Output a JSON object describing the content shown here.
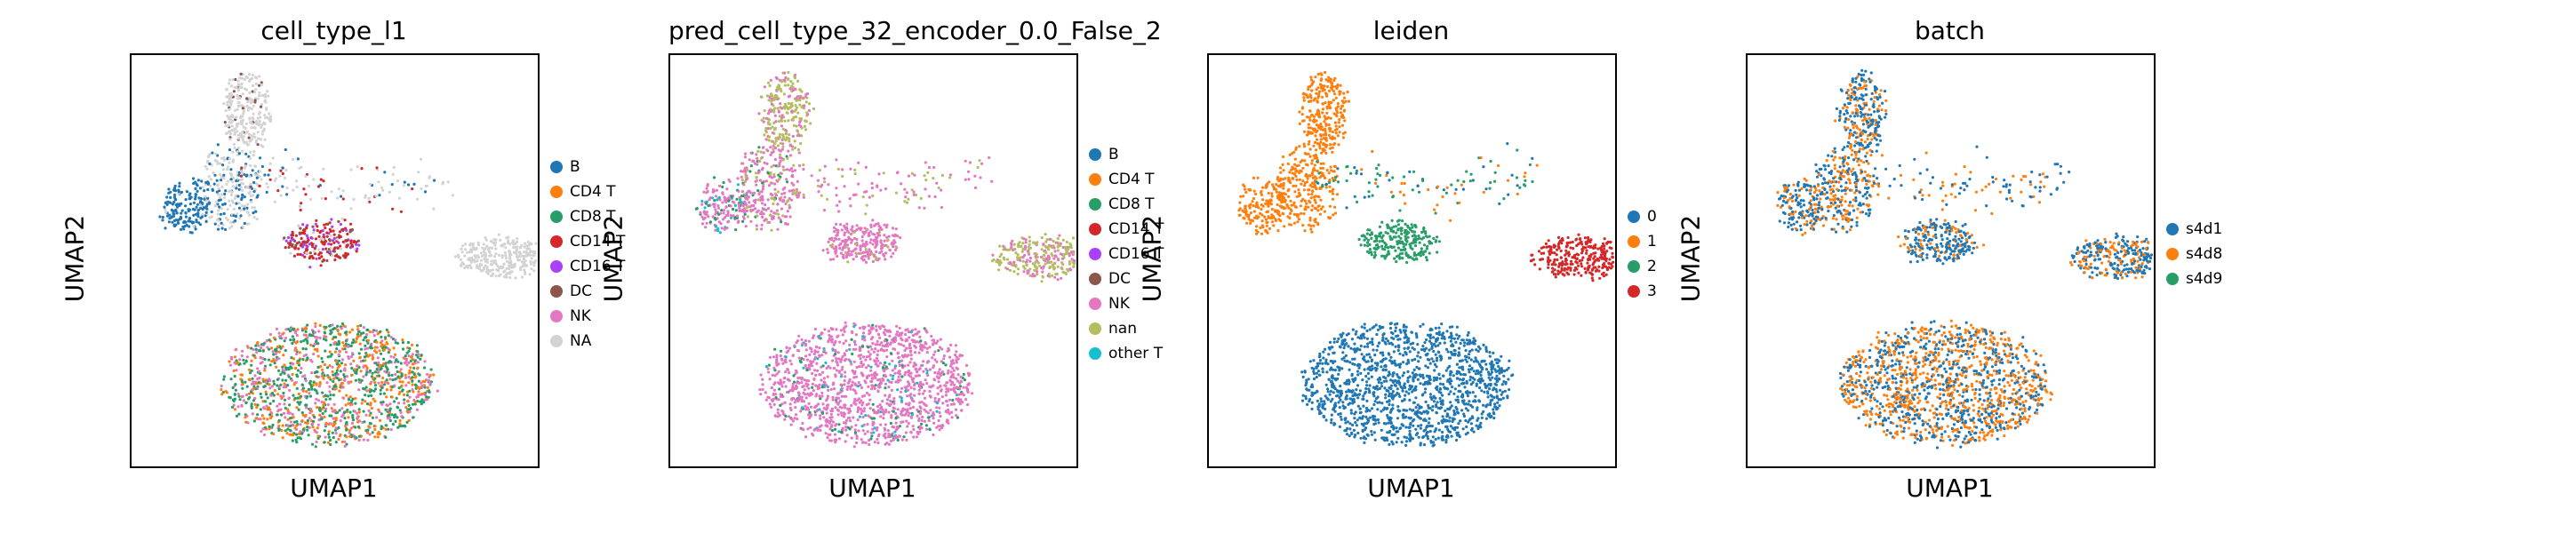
{
  "chart_data": [
    {
      "type": "scatter",
      "title": "cell_type_l1",
      "xlabel": "UMAP1",
      "ylabel": "UMAP2",
      "legend_position": "right",
      "grid": false,
      "series": [
        {
          "name": "B",
          "color": "#1f77b4"
        },
        {
          "name": "CD4 T",
          "color": "#ff7f0e"
        },
        {
          "name": "CD8 T",
          "color": "#279e68"
        },
        {
          "name": "CD14 T",
          "color": "#d62728"
        },
        {
          "name": "CD16 T",
          "color": "#aa40fc"
        },
        {
          "name": "DC",
          "color": "#8c564b"
        },
        {
          "name": "NK",
          "color": "#e377c2"
        },
        {
          "name": "NA",
          "color": "#d3d3d3"
        }
      ]
    },
    {
      "type": "scatter",
      "title": "pred_cell_type_32_encoder_0.0_False_2",
      "xlabel": "UMAP1",
      "ylabel": "UMAP2",
      "legend_position": "right",
      "grid": false,
      "series": [
        {
          "name": "B",
          "color": "#1f77b4"
        },
        {
          "name": "CD4 T",
          "color": "#ff7f0e"
        },
        {
          "name": "CD8 T",
          "color": "#279e68"
        },
        {
          "name": "CD14 T",
          "color": "#d62728"
        },
        {
          "name": "CD16 T",
          "color": "#aa40fc"
        },
        {
          "name": "DC",
          "color": "#8c564b"
        },
        {
          "name": "NK",
          "color": "#e377c2"
        },
        {
          "name": "nan",
          "color": "#b5bd61"
        },
        {
          "name": "other T",
          "color": "#17becf"
        }
      ]
    },
    {
      "type": "scatter",
      "title": "leiden",
      "xlabel": "UMAP1",
      "ylabel": "UMAP2",
      "legend_position": "right",
      "grid": false,
      "series": [
        {
          "name": "0",
          "color": "#1f77b4"
        },
        {
          "name": "1",
          "color": "#ff7f0e"
        },
        {
          "name": "2",
          "color": "#279e68"
        },
        {
          "name": "3",
          "color": "#d62728"
        }
      ]
    },
    {
      "type": "scatter",
      "title": "batch",
      "xlabel": "UMAP1",
      "ylabel": "UMAP2",
      "legend_position": "right",
      "grid": false,
      "series": [
        {
          "name": "s4d1",
          "color": "#1f77b4"
        },
        {
          "name": "s4d8",
          "color": "#ff7f0e"
        },
        {
          "name": "s4d9",
          "color": "#279e68"
        }
      ]
    }
  ]
}
